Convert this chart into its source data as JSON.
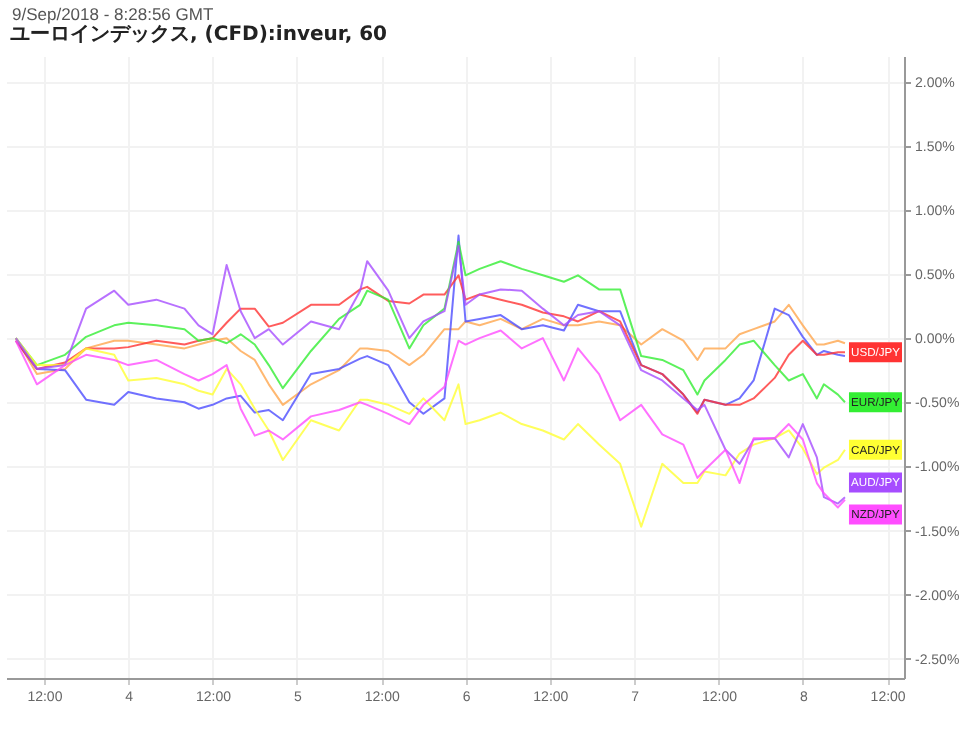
{
  "chart_data": {
    "type": "line",
    "title": "ユーロインデックス, (CFD):inveur, 60",
    "annotations": [
      "9/Sep/2018 - 8:28:56 GMT"
    ],
    "x": [
      "2018-09-03T08:00",
      "2018-09-03T11:00",
      "2018-09-03T15:00",
      "2018-09-03T18:00",
      "2018-09-03T22:00",
      "2018-09-04T00:00",
      "2018-09-04T04:00",
      "2018-09-04T08:00",
      "2018-09-04T10:00",
      "2018-09-04T12:00",
      "2018-09-04T14:00",
      "2018-09-04T16:00",
      "2018-09-04T18:00",
      "2018-09-04T20:00",
      "2018-09-04T22:00",
      "2018-09-05T02:00",
      "2018-09-05T06:00",
      "2018-09-05T09:00",
      "2018-09-05T10:00",
      "2018-09-05T13:00",
      "2018-09-05T16:00",
      "2018-09-05T18:00",
      "2018-09-05T21:00",
      "2018-09-05T23:00",
      "2018-09-06T00:00",
      "2018-09-06T02:00",
      "2018-09-06T05:00",
      "2018-09-06T08:00",
      "2018-09-06T11:00",
      "2018-09-06T14:00",
      "2018-09-06T16:00",
      "2018-09-06T19:00",
      "2018-09-06T22:00",
      "2018-09-07T01:00",
      "2018-09-07T04:00",
      "2018-09-07T07:00",
      "2018-09-07T09:00",
      "2018-09-07T10:00",
      "2018-09-07T13:00",
      "2018-09-07T15:00",
      "2018-09-07T17:00",
      "2018-09-07T20:00",
      "2018-09-07T22:00",
      "2018-09-08T00:00",
      "2018-09-08T02:00",
      "2018-09-08T03:00",
      "2018-09-08T05:00",
      "2018-09-08T06:00"
    ],
    "series": [
      {
        "color": "#ffa64d",
        "values": [
          0.0,
          -0.28,
          -0.24,
          -0.08,
          -0.02,
          -0.02,
          -0.05,
          -0.08,
          -0.05,
          -0.02,
          0.0,
          -0.1,
          -0.17,
          -0.36,
          -0.52,
          -0.36,
          -0.25,
          -0.08,
          -0.08,
          -0.1,
          -0.21,
          -0.13,
          0.07,
          0.07,
          0.13,
          0.1,
          0.15,
          0.07,
          0.15,
          0.1,
          0.1,
          0.13,
          0.1,
          -0.05,
          0.07,
          -0.02,
          -0.17,
          -0.08,
          -0.08,
          0.03,
          0.07,
          0.13,
          0.26,
          0.1,
          -0.05,
          -0.05,
          -0.02,
          -0.04
        ]
      },
      {
        "color": "#4d4dff",
        "values": [
          -0.02,
          -0.24,
          -0.25,
          -0.48,
          -0.52,
          -0.42,
          -0.47,
          -0.5,
          -0.55,
          -0.52,
          -0.47,
          -0.45,
          -0.58,
          -0.56,
          -0.64,
          -0.28,
          -0.24,
          -0.16,
          -0.14,
          -0.21,
          -0.5,
          -0.59,
          -0.47,
          0.8,
          0.13,
          0.15,
          0.18,
          0.07,
          0.1,
          0.06,
          0.26,
          0.21,
          0.21,
          -0.21,
          -0.28,
          -0.44,
          -0.58,
          -0.48,
          -0.52,
          -0.47,
          -0.33,
          0.23,
          0.18,
          0.01,
          -0.13,
          -0.1,
          -0.13,
          -0.14
        ]
      },
      {
        "name": "USD/JPY",
        "color": "#ff3333",
        "values": [
          -0.02,
          -0.24,
          -0.19,
          -0.08,
          -0.08,
          -0.07,
          -0.02,
          -0.05,
          -0.02,
          0.0,
          0.12,
          0.23,
          0.23,
          0.09,
          0.12,
          0.26,
          0.26,
          0.38,
          0.4,
          0.29,
          0.27,
          0.34,
          0.34,
          0.49,
          0.3,
          0.34,
          0.3,
          0.26,
          0.2,
          0.17,
          0.13,
          0.21,
          0.13,
          -0.21,
          -0.28,
          -0.44,
          -0.59,
          -0.48,
          -0.52,
          -0.52,
          -0.47,
          -0.31,
          -0.13,
          -0.02,
          -0.13,
          -0.13,
          -0.11,
          -0.11
        ]
      },
      {
        "name": "EUR/JPY",
        "color": "#33ee33",
        "values": [
          0.0,
          -0.21,
          -0.13,
          0.01,
          0.1,
          0.12,
          0.1,
          0.07,
          -0.02,
          0.0,
          -0.04,
          0.03,
          -0.05,
          -0.21,
          -0.39,
          -0.1,
          0.15,
          0.26,
          0.37,
          0.3,
          -0.08,
          0.1,
          0.23,
          0.75,
          0.49,
          0.54,
          0.6,
          0.54,
          0.49,
          0.44,
          0.49,
          0.38,
          0.38,
          -0.14,
          -0.17,
          -0.25,
          -0.44,
          -0.33,
          -0.17,
          -0.05,
          -0.02,
          -0.21,
          -0.33,
          -0.28,
          -0.47,
          -0.36,
          -0.44,
          -0.5
        ]
      },
      {
        "name": "CAD/JPY",
        "color": "#ffff33",
        "values": [
          0.0,
          -0.21,
          -0.21,
          -0.08,
          -0.13,
          -0.33,
          -0.31,
          -0.36,
          -0.41,
          -0.44,
          -0.24,
          -0.36,
          -0.55,
          -0.72,
          -0.95,
          -0.64,
          -0.72,
          -0.48,
          -0.48,
          -0.52,
          -0.59,
          -0.47,
          -0.64,
          -0.36,
          -0.67,
          -0.64,
          -0.58,
          -0.67,
          -0.72,
          -0.79,
          -0.67,
          -0.83,
          -0.98,
          -1.47,
          -0.98,
          -1.13,
          -1.13,
          -1.04,
          -1.07,
          -0.9,
          -0.83,
          -0.78,
          -0.72,
          -0.86,
          -1.06,
          -1.01,
          -0.95,
          -0.87
        ]
      },
      {
        "name": "AUD/JPY",
        "color": "#a64dff",
        "values": [
          0.0,
          -0.24,
          -0.21,
          0.23,
          0.37,
          0.26,
          0.3,
          0.23,
          0.1,
          0.03,
          0.57,
          0.21,
          0.0,
          0.07,
          -0.05,
          0.13,
          0.07,
          0.37,
          0.6,
          0.37,
          0.0,
          0.13,
          0.21,
          0.72,
          0.26,
          0.34,
          0.38,
          0.37,
          0.23,
          0.1,
          0.18,
          0.21,
          0.1,
          -0.25,
          -0.33,
          -0.47,
          -0.56,
          -0.52,
          -0.87,
          -0.98,
          -0.79,
          -0.78,
          -0.93,
          -0.67,
          -0.93,
          -1.24,
          -1.29,
          -1.24
        ]
      },
      {
        "name": "NZD/JPY",
        "color": "#ff4dff",
        "values": [
          -0.02,
          -0.36,
          -0.21,
          -0.13,
          -0.17,
          -0.21,
          -0.17,
          -0.28,
          -0.33,
          -0.28,
          -0.21,
          -0.55,
          -0.76,
          -0.72,
          -0.79,
          -0.61,
          -0.56,
          -0.5,
          -0.52,
          -0.59,
          -0.67,
          -0.52,
          -0.38,
          -0.02,
          -0.05,
          0.0,
          0.06,
          -0.08,
          0.0,
          -0.33,
          -0.08,
          -0.28,
          -0.64,
          -0.52,
          -0.75,
          -0.83,
          -1.09,
          -1.03,
          -0.87,
          -1.13,
          -0.78,
          -0.78,
          -0.67,
          -0.79,
          -1.13,
          -1.21,
          -1.32,
          -1.26
        ]
      }
    ],
    "xlim": [
      "2018-09-03T06:36",
      "2018-09-08T14:24"
    ],
    "xticks": [
      {
        "value": "2018-09-03T12:00",
        "label": "12:00"
      },
      {
        "value": "2018-09-04",
        "label": "4"
      },
      {
        "value": "2018-09-04T12:00",
        "label": "12:00"
      },
      {
        "value": "2018-09-05",
        "label": "5"
      },
      {
        "value": "2018-09-05T12:00",
        "label": "12:00"
      },
      {
        "value": "2018-09-06",
        "label": "6"
      },
      {
        "value": "2018-09-06T12:00",
        "label": "12:00"
      },
      {
        "value": "2018-09-07",
        "label": "7"
      },
      {
        "value": "2018-09-07T12:00",
        "label": "12:00"
      },
      {
        "value": "2018-09-08",
        "label": "8"
      },
      {
        "value": "2018-09-08T12:00",
        "label": "12:00"
      }
    ],
    "ylim": [
      -2.65,
      2.2
    ],
    "yticks": [
      {
        "value": 2,
        "label": "2.00%"
      },
      {
        "value": 1.5,
        "label": "1.50%"
      },
      {
        "value": 1,
        "label": "1.00%"
      },
      {
        "value": 0.5,
        "label": "0.50%"
      },
      {
        "value": 0,
        "label": "0.00%"
      },
      {
        "value": -0.5,
        "label": "-0.50%"
      },
      {
        "value": -1,
        "label": "-1.00%"
      },
      {
        "value": -1.5,
        "label": "-1.50%"
      },
      {
        "value": -2,
        "label": "-2.00%"
      },
      {
        "value": -2.5,
        "label": "-2.50%"
      }
    ],
    "grid": true,
    "line_style": "solid",
    "marker": "none"
  }
}
